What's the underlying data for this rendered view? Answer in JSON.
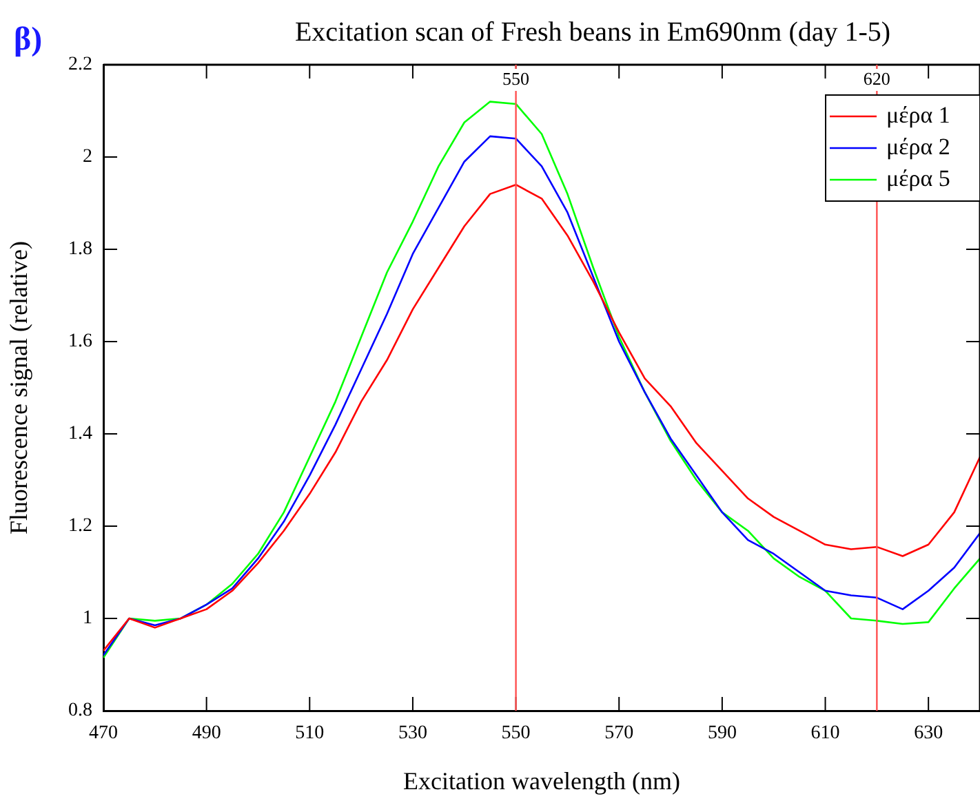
{
  "chart_data": {
    "type": "line",
    "title": "Excitation scan of Fresh beans in Em690nm (day 1-5)",
    "xlabel": "Excitation wavelength (nm)",
    "ylabel": "Fluorescence signal (relative)",
    "annotations": [
      "β)"
    ],
    "x": [
      470,
      475,
      480,
      485,
      490,
      495,
      500,
      505,
      510,
      515,
      520,
      525,
      530,
      535,
      540,
      545,
      550,
      555,
      560,
      565,
      570,
      575,
      580,
      585,
      590,
      595,
      600,
      605,
      610,
      615,
      620,
      625,
      630,
      635,
      640
    ],
    "series": [
      {
        "name": "μέρα 1",
        "color": "#ff0000",
        "values": [
          0.93,
          1.0,
          0.98,
          1.0,
          1.02,
          1.06,
          1.12,
          1.19,
          1.27,
          1.36,
          1.47,
          1.56,
          1.67,
          1.76,
          1.85,
          1.92,
          1.94,
          1.91,
          1.83,
          1.73,
          1.62,
          1.52,
          1.46,
          1.38,
          1.32,
          1.26,
          1.22,
          1.19,
          1.16,
          1.15,
          1.155,
          1.135,
          1.16,
          1.23,
          1.35
        ]
      },
      {
        "name": "μέρα 2",
        "color": "#0000ff",
        "values": [
          0.92,
          1.0,
          0.985,
          1.0,
          1.03,
          1.065,
          1.13,
          1.21,
          1.31,
          1.42,
          1.54,
          1.66,
          1.79,
          1.89,
          1.99,
          2.045,
          2.04,
          1.98,
          1.88,
          1.74,
          1.6,
          1.49,
          1.39,
          1.31,
          1.23,
          1.17,
          1.14,
          1.1,
          1.06,
          1.05,
          1.045,
          1.02,
          1.06,
          1.11,
          1.185
        ]
      },
      {
        "name": "μέρα 5",
        "color": "#00ff00",
        "values": [
          0.915,
          1.0,
          0.995,
          1.0,
          1.03,
          1.075,
          1.14,
          1.23,
          1.35,
          1.47,
          1.61,
          1.75,
          1.86,
          1.98,
          2.075,
          2.12,
          2.115,
          2.05,
          1.92,
          1.76,
          1.61,
          1.49,
          1.385,
          1.3,
          1.23,
          1.19,
          1.13,
          1.09,
          1.06,
          1.0,
          0.995,
          0.988,
          0.992,
          1.065,
          1.13
        ]
      }
    ],
    "xlim": [
      470,
      640
    ],
    "xticks": [
      470,
      490,
      510,
      530,
      550,
      570,
      590,
      610,
      630
    ],
    "ylim": [
      0.8,
      2.2
    ],
    "yticks": [
      0.8,
      1,
      1.2,
      1.4,
      1.6,
      1.8,
      2,
      2.2
    ],
    "ref_lines": [
      {
        "axis": "x",
        "value": 550,
        "label": "550",
        "color": "#ff5050"
      },
      {
        "axis": "x",
        "value": 620,
        "label": "620",
        "color": "#ff5050"
      }
    ],
    "grid": false,
    "legend": "top right",
    "marker": "none",
    "line_style": "solid"
  }
}
